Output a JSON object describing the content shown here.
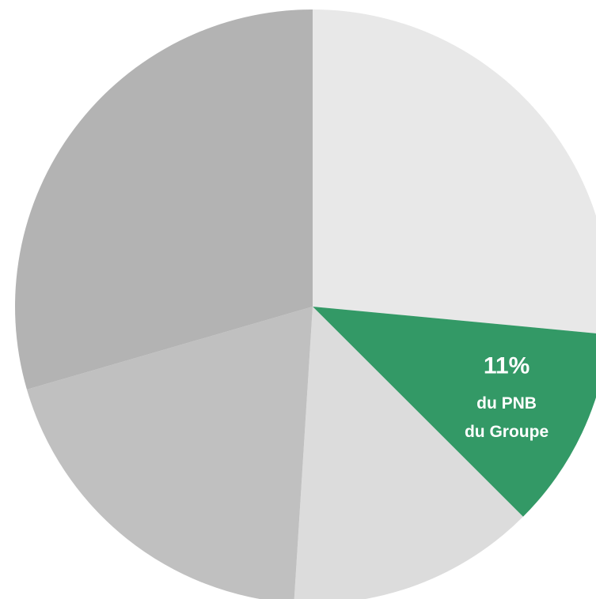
{
  "chart_data": {
    "type": "pie",
    "categories": [
      null,
      null,
      null,
      null,
      null
    ],
    "values": [
      26.5,
      11,
      13.5,
      19.5,
      29.5
    ],
    "value_labels": [
      null,
      "11%",
      null,
      null,
      null
    ],
    "colors": [
      "#e8e8e8",
      "#339966",
      "#dcdcdc",
      "#c0c0c0",
      "#b3b3b3"
    ],
    "annotation": [
      "du PNB",
      "du Groupe"
    ]
  }
}
